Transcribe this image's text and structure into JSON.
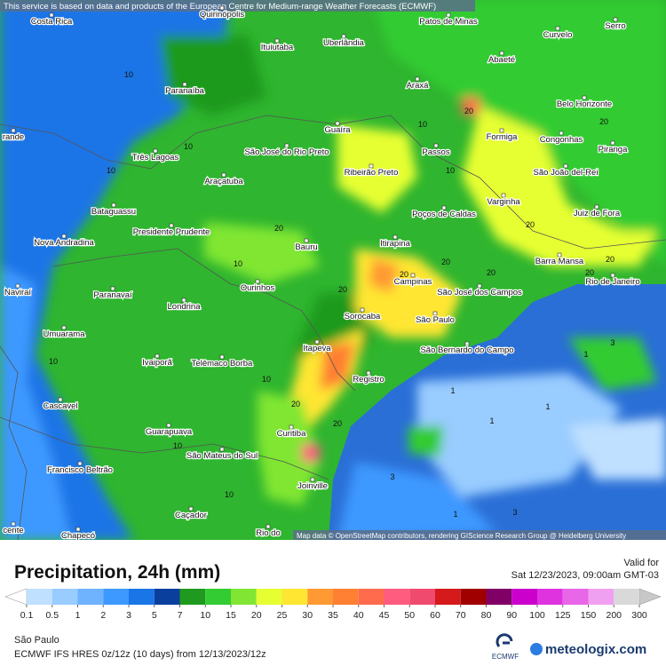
{
  "header": {
    "attribution": "This service is based on data and products of the European Centre for Medium-range Weather Forecasts (ECMWF)"
  },
  "map": {
    "cities": [
      "Costa Rica",
      "Quirinópolis",
      "Ituiutaba",
      "Uberlândia",
      "Patos de Minas",
      "Abaeté",
      "Curvelo",
      "Serro",
      "Paranaíba",
      "Araxá",
      "Belo Horizonte",
      "Guaíra",
      "Formiga",
      "Congonhas",
      "Passos",
      "Piranga",
      "Três Lagoas",
      "São José do Rio Preto",
      "Ribeirão Preto",
      "São João del-Rei",
      "Araçatuba",
      "Varginha",
      "Bataguassu",
      "Poços de Caldas",
      "Juiz de Fora",
      "Presidente Prudente",
      "Nova Andradina",
      "Bauru",
      "Itirapina",
      "Barra Mansa",
      "Campinas",
      "São José dos Campos",
      "Rio de Janeiro",
      "Naviraí",
      "Paranavaí",
      "Ourinhos",
      "Londrina",
      "Sorocaba",
      "São Paulo",
      "São Bernardo do Campo",
      "Umuarama",
      "Itapeva",
      "Ivaiporã",
      "Telêmaco Borba",
      "Registro",
      "Cascavel",
      "Guarapuava",
      "Curitiba",
      "São Mateus do Sul",
      "Francisco Beltrão",
      "Joinville",
      "Caçador",
      "Chapecó",
      "Rio do",
      "rande",
      "cente"
    ],
    "contour_labels": [
      "10",
      "10",
      "10",
      "20",
      "10",
      "20",
      "20",
      "20",
      "20",
      "20",
      "20",
      "20",
      "10",
      "10",
      "20",
      "20",
      "10",
      "10",
      "20",
      "20",
      "1",
      "1",
      "1",
      "3",
      "3",
      "1",
      "3",
      "1",
      "10",
      "10"
    ],
    "attribution": "Map data © OpenStreetMap contributors, rendering GIScience Research Group @ Heidelberg University"
  },
  "legend": {
    "title": "Precipitation, 24h (mm)",
    "valid_label": "Valid for",
    "valid_time": "Sat 12/23/2023, 09:00am GMT-03",
    "levels": [
      0.1,
      0.5,
      1,
      2,
      3,
      5,
      7,
      10,
      15,
      20,
      25,
      30,
      35,
      40,
      45,
      50,
      60,
      70,
      80,
      90,
      100,
      125,
      150,
      200,
      300
    ],
    "colors": [
      "#bfe0ff",
      "#99ccff",
      "#6fb3ff",
      "#3d99ff",
      "#1a75e6",
      "#0b3f9e",
      "#1f9a1f",
      "#33cc33",
      "#80e633",
      "#e6ff33",
      "#ffe633",
      "#ff9933",
      "#ff7f33",
      "#ff6b4d",
      "#ff5c80",
      "#f04a6e",
      "#d41a1a",
      "#a00000",
      "#800066",
      "#cc00cc",
      "#e033e0",
      "#e866e8",
      "#f0a0f0",
      "#d9d9d9"
    ],
    "under_color": "#ffffff",
    "over_color": "#c8c8c8"
  },
  "footer": {
    "location": "São Paulo",
    "model": "ECMWF IFS HRES 0z/12z (10 days) from 12/13/2023/12z",
    "logo_ecmwf": "ECMWF",
    "logo_meteologix": "meteologix.com"
  }
}
